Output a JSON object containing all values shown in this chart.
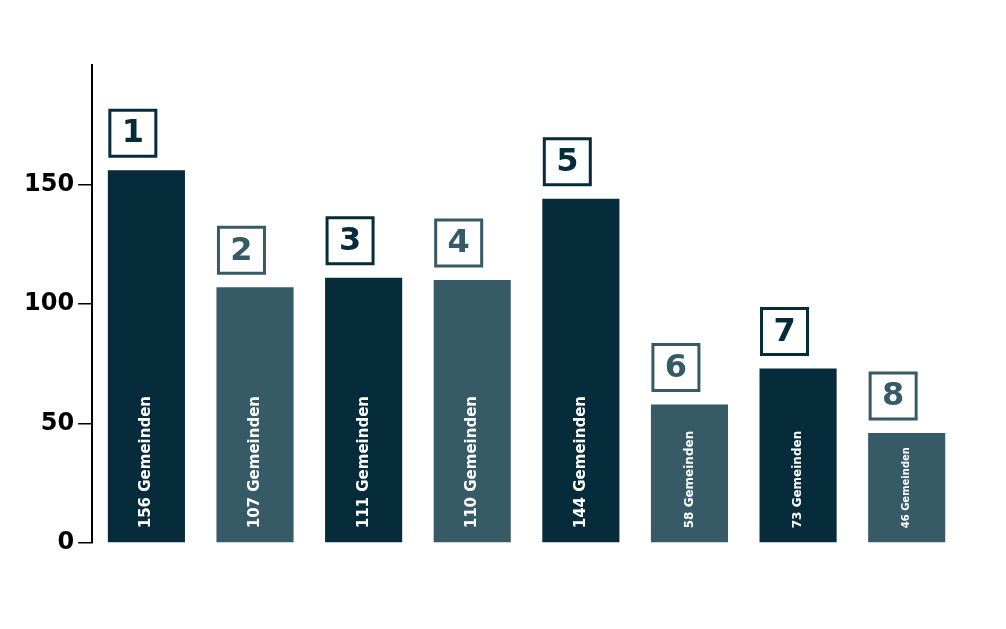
{
  "chart_data": {
    "type": "bar",
    "categories": [
      "1",
      "2",
      "3",
      "4",
      "5",
      "6",
      "7",
      "8"
    ],
    "values": [
      156,
      107,
      111,
      110,
      144,
      58,
      73,
      46
    ],
    "colors": [
      "#062b3a",
      "#365a66",
      "#062b3a",
      "#365a66",
      "#062b3a",
      "#365a66",
      "#062b3a",
      "#365a66"
    ],
    "value_labels": [
      "156 Gemeinden",
      "107 Gemeinden",
      "111 Gemeinden",
      "110 Gemeinden",
      "144 Gemeinden",
      "58 Gemeinden",
      "73 Gemeinden",
      "46 Gemeinden"
    ],
    "ylim": [
      0,
      200
    ],
    "yticks": [
      0,
      50,
      100,
      150
    ]
  }
}
